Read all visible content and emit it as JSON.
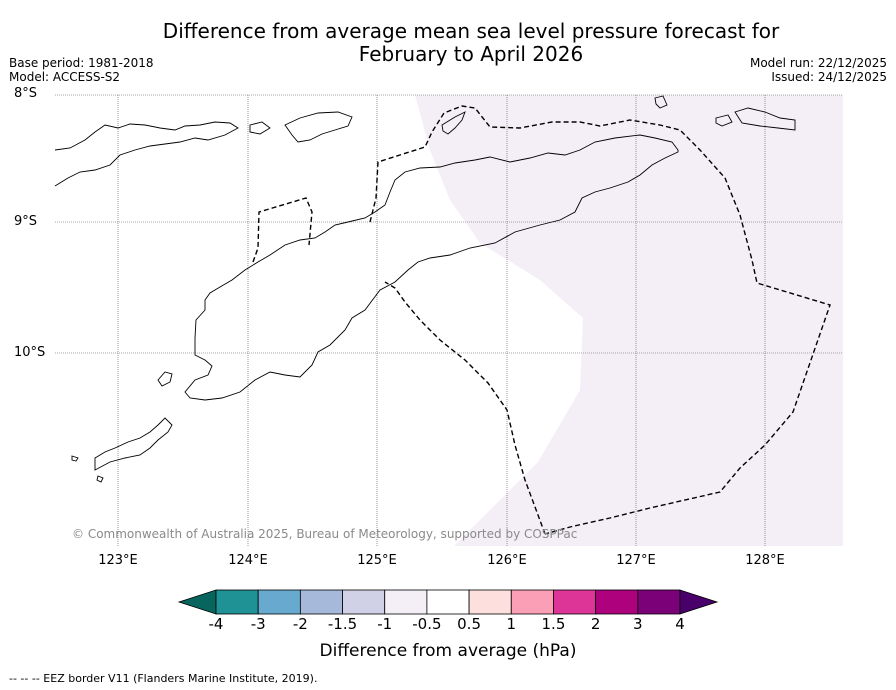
{
  "title_line1": "Difference from average mean sea level pressure forecast for",
  "title_line2": "February to April 2026",
  "meta_left": [
    "Base period: 1981-2018",
    "Model: ACCESS-S2"
  ],
  "meta_right": [
    "Model run: 22/12/2025",
    "Issued: 24/12/2025"
  ],
  "lat_labels": [
    "8°S",
    "9°S",
    "10°S"
  ],
  "lon_labels": [
    "123°E",
    "124°E",
    "125°E",
    "126°E",
    "127°E",
    "128°E"
  ],
  "copyright": "© Commonwealth of Australia 2025, Bureau of Meteorology, supported by COSPPac",
  "colorbar": {
    "title": "Difference from average (hPa)",
    "ticks": [
      "-4",
      "-3",
      "-2",
      "-1.5",
      "-1",
      "-0.5",
      "0.5",
      "1",
      "1.5",
      "2",
      "3",
      "4"
    ],
    "colors": [
      "#07655d",
      "#1f9296",
      "#67a9cf",
      "#a6b9db",
      "#d0d1e6",
      "#f4eef6",
      "#ffffff",
      "#fde0dd",
      "#fa9fb5",
      "#dd3497",
      "#ae017e",
      "#7a0177",
      "#49006a"
    ]
  },
  "anomaly_fill_color": "#f4eef6",
  "footer": "--  --  -- EEZ border V11 (Flanders Marine Institute, 2019)."
}
